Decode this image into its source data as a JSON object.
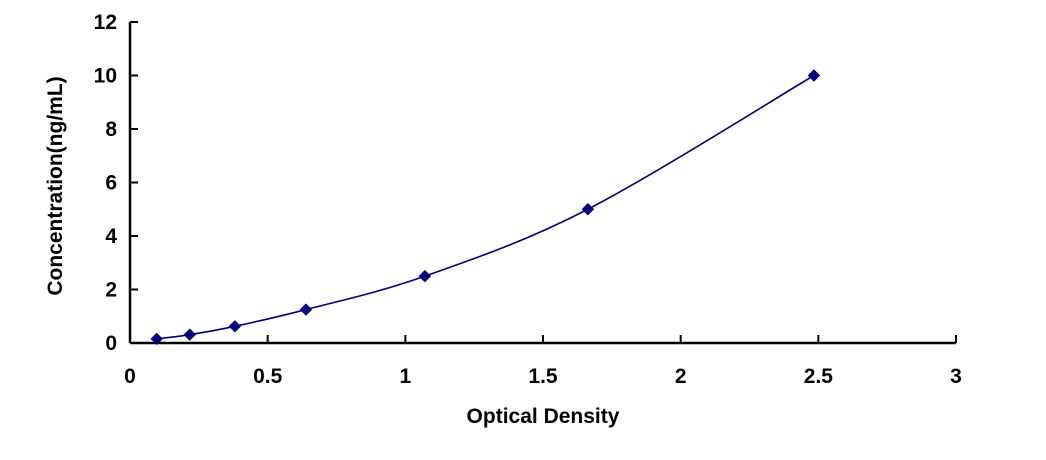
{
  "chart_data": {
    "type": "scatter",
    "title": "",
    "xlabel": "Optical Density",
    "ylabel": "Concentration(ng/mL)",
    "xlim": [
      0,
      3
    ],
    "ylim": [
      0,
      12
    ],
    "x_ticks": [
      "0",
      "0.5",
      "1",
      "1.5",
      "2",
      "2.5",
      "3"
    ],
    "y_ticks": [
      "0",
      "2",
      "4",
      "6",
      "8",
      "10",
      "12"
    ],
    "grid": false,
    "legend": "none",
    "series": [
      {
        "x": [
          0.097,
          0.217,
          0.381,
          0.639,
          1.071,
          1.663,
          2.484
        ],
        "y": [
          0.156,
          0.312,
          0.625,
          1.25,
          2.5,
          5,
          10
        ],
        "marker": "diamond",
        "color": "#000080",
        "trendline": "smooth"
      }
    ]
  }
}
